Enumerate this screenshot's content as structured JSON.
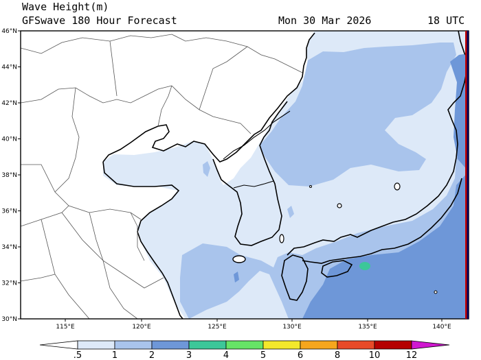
{
  "header": {
    "field": "Wave Height(m)",
    "model": "GFSwave 180 Hour Forecast",
    "valid_date": "Mon 30 Mar 2026",
    "valid_hour": "18 UTC"
  },
  "map": {
    "lat_ticks": [
      "46°N",
      "44°N",
      "42°N",
      "40°N",
      "38°N",
      "36°N",
      "34°N",
      "32°N",
      "30°N"
    ],
    "lon_ticks": [
      "115°E",
      "120°E",
      "125°E",
      "130°E",
      "135°E",
      "140°E"
    ],
    "region": "Yellow Sea, Korea, Sea of Japan and western Pacific"
  },
  "colorbar": {
    "labels": [
      ".5",
      "1",
      "2",
      "3",
      "4",
      "5",
      "6",
      "8",
      "10",
      "12"
    ],
    "colors": [
      "#ffffff",
      "#dde9f8",
      "#a9c4ec",
      "#6e97d8",
      "#3cc799",
      "#66e466",
      "#f3e82b",
      "#f6a61d",
      "#e84a28",
      "#b50000",
      "#d018d0"
    ]
  },
  "palette": {
    "land": "#ffffff",
    "calm_sea": "#dde9f8",
    "moderate_sea": "#a9c4ec",
    "rough_sea": "#6e97d8",
    "high_sea": "#3cc799",
    "edge_red": "#c00000",
    "edge_navy": "#000060"
  }
}
